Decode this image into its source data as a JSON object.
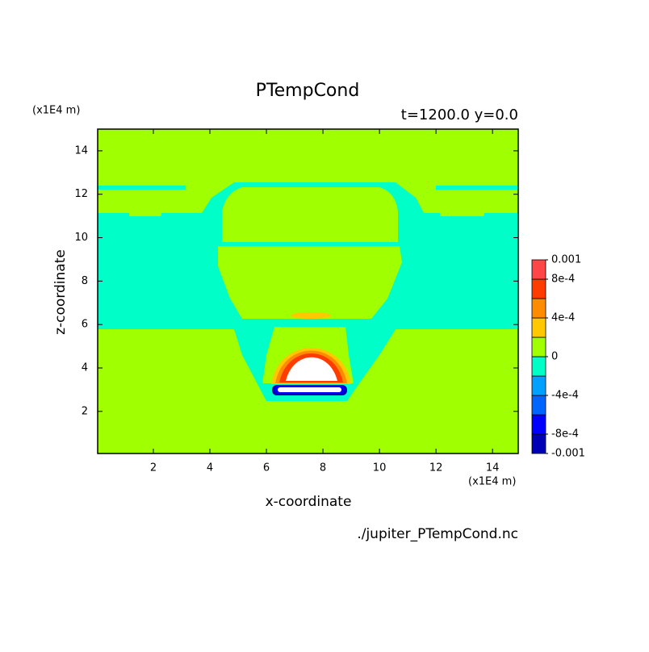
{
  "chart_data": {
    "type": "filled-contour",
    "title": "PTempCond",
    "subtitle": "t=1200.0 y=0.0",
    "x_label": "x-coordinate",
    "y_label": "z-coordinate",
    "x_unit": "(x1E4 m)",
    "y_unit": "(x1E4 m)",
    "source": "./jupiter_PTempCond.nc",
    "xlim": [
      0.03,
      14.91
    ],
    "ylim": [
      0.06,
      15.0
    ],
    "xticks": [
      2,
      4,
      6,
      8,
      10,
      12,
      14
    ],
    "yticks": [
      2,
      4,
      6,
      8,
      10,
      12,
      14
    ],
    "levels": [
      -0.001,
      -0.0008,
      -0.0006,
      -0.0004,
      -0.0002,
      0,
      0.0002,
      0.0004,
      0.0006,
      0.0008,
      0.001
    ],
    "colors": [
      "#0000b4",
      "#0000ff",
      "#0064ff",
      "#00a0ff",
      "#00ffc8",
      "#a0ff00",
      "#ffc800",
      "#ff8c00",
      "#ff3c00",
      "#ff4646"
    ],
    "colorbar_ticks": [
      {
        "value": -0.001,
        "label": "-0.001"
      },
      {
        "value": -0.0008,
        "label": "-8e-4"
      },
      {
        "value": -0.0004,
        "label": "-4e-4"
      },
      0,
      {
        "value": 0.0004,
        "label": "4e-4"
      },
      {
        "value": 0.0008,
        "label": "8e-4"
      },
      0.001
    ]
  }
}
